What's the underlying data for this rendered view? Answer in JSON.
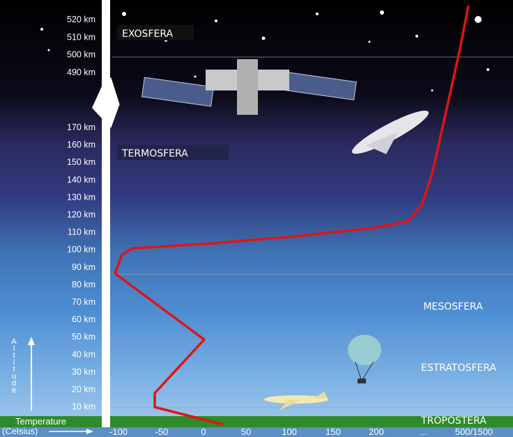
{
  "altitude_labels": [
    "520 km",
    "510 km",
    "500 km",
    "490 km",
    "170 km",
    "160 km",
    "150 km",
    "140 km",
    "130 km",
    "120 km",
    "110 km",
    "100 km",
    "90 km",
    "80 km",
    "70 km",
    "60 km",
    "50 km",
    "40 km",
    "30 km",
    "20 km",
    "10 km"
  ],
  "altitude_title": "Altitude",
  "temperature_title": "Temperature",
  "temperature_unit": "(Celsius)",
  "temperature_labels": [
    "-100",
    "-50",
    "0",
    "50",
    "100",
    "150",
    "200",
    "...",
    "500/1500"
  ],
  "layers": [
    "EXOSFERA",
    "TERMOSFERA",
    "MESOSFERA",
    "ESTRATOSFERA",
    "TROPOSTERA"
  ]
}
